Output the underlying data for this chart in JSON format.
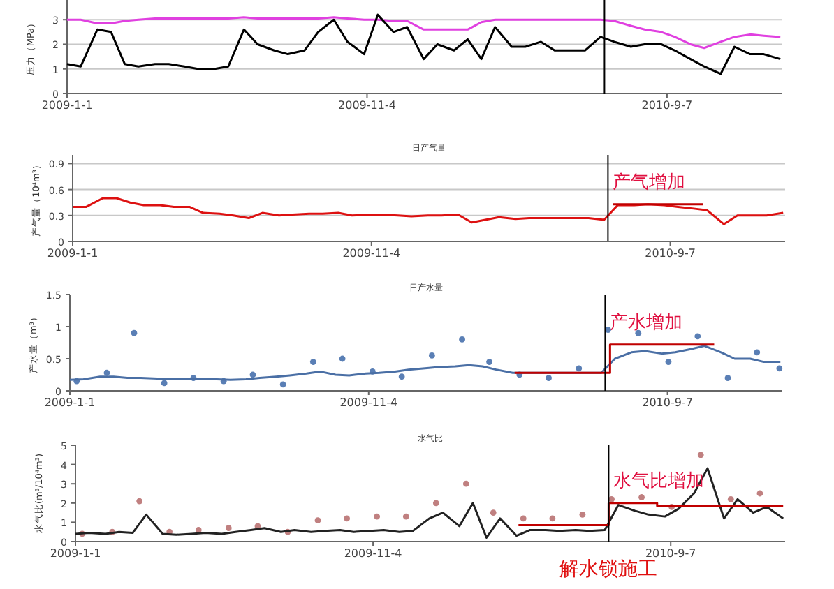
{
  "chart_data": [
    {
      "type": "line",
      "ylabel": "压力（MPa）",
      "grid": "y",
      "xlim": [
        "2009-01-01",
        "2011-01-03"
      ],
      "ylim": [
        0,
        3.8
      ],
      "yticks": [
        0,
        1,
        2,
        3
      ],
      "xticks": [
        {
          "value": "2009-01-01",
          "label": "2009-1-1"
        },
        {
          "value": "2009-11-04",
          "label": "2009-11-4"
        },
        {
          "value": "2010-09-07",
          "label": "2010-9-7"
        }
      ],
      "x": [
        "2009-01-01",
        "2009-01-15",
        "2009-02-01",
        "2009-02-15",
        "2009-03-01",
        "2009-03-15",
        "2009-04-01",
        "2009-04-15",
        "2009-05-01",
        "2009-05-15",
        "2009-06-01",
        "2009-06-15",
        "2009-07-01",
        "2009-07-15",
        "2009-08-01",
        "2009-08-15",
        "2009-09-01",
        "2009-09-15",
        "2009-10-01",
        "2009-10-15",
        "2009-11-01",
        "2009-11-15",
        "2009-12-01",
        "2009-12-15",
        "2010-01-01",
        "2010-01-15",
        "2010-02-01",
        "2010-02-15",
        "2010-03-01",
        "2010-03-15",
        "2010-04-01",
        "2010-04-15",
        "2010-05-01",
        "2010-05-15",
        "2010-06-01",
        "2010-06-15",
        "2010-07-01",
        "2010-07-15",
        "2010-08-01",
        "2010-08-15",
        "2010-09-01",
        "2010-09-15",
        "2010-10-01",
        "2010-10-15",
        "2010-11-01",
        "2010-11-15",
        "2010-12-01",
        "2010-12-15",
        "2011-01-01"
      ],
      "series": [
        {
          "color": "#e040e0",
          "values": [
            3.0,
            3.0,
            2.85,
            2.85,
            2.95,
            3.0,
            3.05,
            3.05,
            3.05,
            3.05,
            3.05,
            3.05,
            3.1,
            3.05,
            3.05,
            3.05,
            3.05,
            3.05,
            3.1,
            3.05,
            3.0,
            3.0,
            2.95,
            2.95,
            2.6,
            2.6,
            2.6,
            2.6,
            2.9,
            3.0,
            3.0,
            3.0,
            3.0,
            3.0,
            3.0,
            3.0,
            3.0,
            2.95,
            2.75,
            2.6,
            2.5,
            2.3,
            2.0,
            1.85,
            2.1,
            2.3,
            2.4,
            2.35,
            2.3
          ]
        },
        {
          "color": "#000000",
          "values": [
            1.2,
            1.1,
            2.6,
            2.5,
            1.2,
            1.1,
            1.2,
            1.2,
            1.1,
            1.0,
            1.0,
            1.1,
            2.6,
            2.0,
            1.75,
            1.6,
            1.75,
            2.5,
            3.0,
            2.1,
            1.6,
            3.2,
            2.5,
            2.7,
            1.4,
            2.0,
            1.75,
            2.2,
            1.4,
            2.7,
            1.9,
            1.9,
            2.1,
            1.75,
            1.75,
            1.75,
            2.3,
            2.1,
            1.9,
            2.0,
            2.0,
            1.75,
            1.4,
            1.1,
            0.8,
            1.9,
            1.6,
            1.6,
            1.4
          ]
        }
      ],
      "ref_lines": [
        {
          "axis": "x",
          "value": "2010-07-05",
          "color": "#000000"
        }
      ]
    },
    {
      "type": "line",
      "title": "日产气量",
      "ylabel": "产气量（10⁴m³）",
      "grid": "y",
      "xlim": [
        "2009-01-01",
        "2011-01-03"
      ],
      "ylim": [
        0,
        1.0
      ],
      "yticks": [
        0,
        0.3,
        0.6,
        0.9
      ],
      "xticks": [
        {
          "value": "2009-01-01",
          "label": "2009-1-1"
        },
        {
          "value": "2009-11-04",
          "label": "2009-11-4"
        },
        {
          "value": "2010-09-07",
          "label": "2010-9-7"
        }
      ],
      "x": [
        "2009-01-01",
        "2009-01-15",
        "2009-02-01",
        "2009-02-15",
        "2009-03-01",
        "2009-03-15",
        "2009-04-01",
        "2009-04-15",
        "2009-05-01",
        "2009-05-15",
        "2009-06-01",
        "2009-06-15",
        "2009-07-01",
        "2009-07-15",
        "2009-08-01",
        "2009-08-15",
        "2009-09-01",
        "2009-09-15",
        "2009-10-01",
        "2009-10-15",
        "2009-11-01",
        "2009-11-15",
        "2009-12-01",
        "2009-12-15",
        "2010-01-01",
        "2010-01-15",
        "2010-02-01",
        "2010-02-15",
        "2010-03-01",
        "2010-03-15",
        "2010-04-01",
        "2010-04-15",
        "2010-05-01",
        "2010-05-15",
        "2010-06-01",
        "2010-06-15",
        "2010-07-01",
        "2010-07-15",
        "2010-08-01",
        "2010-08-15",
        "2010-09-01",
        "2010-09-15",
        "2010-10-01",
        "2010-10-15",
        "2010-11-01",
        "2010-11-15",
        "2010-12-01",
        "2010-12-15",
        "2011-01-01"
      ],
      "series": [
        {
          "color": "#dd1111",
          "values": [
            0.4,
            0.4,
            0.5,
            0.5,
            0.45,
            0.42,
            0.42,
            0.4,
            0.4,
            0.33,
            0.32,
            0.3,
            0.27,
            0.33,
            0.3,
            0.31,
            0.32,
            0.32,
            0.33,
            0.3,
            0.31,
            0.31,
            0.3,
            0.29,
            0.3,
            0.3,
            0.31,
            0.22,
            0.25,
            0.28,
            0.26,
            0.27,
            0.27,
            0.27,
            0.27,
            0.27,
            0.25,
            0.42,
            0.42,
            0.43,
            0.42,
            0.4,
            0.38,
            0.36,
            0.2,
            0.3,
            0.3,
            0.3,
            0.33
          ]
        },
        {
          "color": "#c00000",
          "x": [
            "2010-07-10",
            "2010-10-11"
          ],
          "values": [
            0.43,
            0.43
          ]
        }
      ],
      "ref_lines": [
        {
          "axis": "x",
          "value": "2010-07-05",
          "color": "#000000"
        }
      ],
      "annotations": [
        {
          "text": "产气增加",
          "x": "2010-07-10",
          "y": 0.43
        }
      ]
    },
    {
      "type": "line",
      "title": "日产水量",
      "ylabel": "产水量（m³）",
      "xlim": [
        "2009-01-01",
        "2011-01-03"
      ],
      "ylim": [
        0,
        1.5
      ],
      "yticks": [
        0,
        0.5,
        1,
        1.5
      ],
      "xticks": [
        {
          "value": "2009-01-01",
          "label": "2009-1-1"
        },
        {
          "value": "2009-11-04",
          "label": "2009-11-4"
        },
        {
          "value": "2010-09-07",
          "label": "2010-9-7"
        }
      ],
      "x": [
        "2009-01-01",
        "2009-01-15",
        "2009-02-01",
        "2009-02-15",
        "2009-03-01",
        "2009-03-15",
        "2009-04-01",
        "2009-04-15",
        "2009-05-01",
        "2009-05-15",
        "2009-06-01",
        "2009-06-15",
        "2009-07-01",
        "2009-07-15",
        "2009-08-01",
        "2009-08-15",
        "2009-09-01",
        "2009-09-15",
        "2009-10-01",
        "2009-10-15",
        "2009-11-01",
        "2009-11-15",
        "2009-12-01",
        "2009-12-15",
        "2010-01-01",
        "2010-01-15",
        "2010-02-01",
        "2010-02-15",
        "2010-03-01",
        "2010-03-15",
        "2010-04-01",
        "2010-04-15",
        "2010-05-01",
        "2010-05-15",
        "2010-06-01",
        "2010-06-15",
        "2010-07-01",
        "2010-07-15",
        "2010-08-01",
        "2010-08-15",
        "2010-09-01",
        "2010-09-15",
        "2010-10-01",
        "2010-10-15",
        "2010-11-01",
        "2010-11-15",
        "2010-12-01",
        "2010-12-15",
        "2011-01-01"
      ],
      "series": [
        {
          "type": "scatter",
          "color": "#5a7fb5",
          "x": [
            "2009-01-08",
            "2009-02-08",
            "2009-03-08",
            "2009-04-08",
            "2009-05-08",
            "2009-06-08",
            "2009-07-08",
            "2009-08-08",
            "2009-09-08",
            "2009-10-08",
            "2009-11-08",
            "2009-12-08",
            "2010-01-08",
            "2010-02-08",
            "2010-03-08",
            "2010-04-08",
            "2010-05-08",
            "2010-06-08",
            "2010-07-08",
            "2010-08-08",
            "2010-09-08",
            "2010-10-08",
            "2010-11-08",
            "2010-12-08",
            "2010-12-31"
          ],
          "values": [
            0.15,
            0.28,
            0.9,
            0.12,
            0.2,
            0.15,
            0.25,
            0.1,
            0.45,
            0.5,
            0.3,
            0.22,
            0.55,
            0.8,
            0.45,
            0.25,
            0.2,
            0.35,
            0.95,
            0.9,
            0.45,
            0.85,
            0.2,
            0.6,
            0.35
          ]
        },
        {
          "color": "#4a6fa5",
          "values": [
            0.17,
            0.18,
            0.22,
            0.22,
            0.2,
            0.2,
            0.19,
            0.18,
            0.18,
            0.18,
            0.18,
            0.17,
            0.18,
            0.2,
            0.22,
            0.24,
            0.27,
            0.3,
            0.25,
            0.24,
            0.27,
            0.28,
            0.3,
            0.33,
            0.35,
            0.37,
            0.38,
            0.4,
            0.38,
            0.33,
            0.28,
            0.28,
            0.28,
            0.28,
            0.28,
            0.28,
            0.28,
            0.5,
            0.6,
            0.62,
            0.58,
            0.6,
            0.65,
            0.7,
            0.6,
            0.5,
            0.5,
            0.45,
            0.45
          ]
        },
        {
          "color": "#c00000",
          "x": [
            "2010-04-03",
            "2010-07-10",
            "2010-07-10",
            "2010-10-25"
          ],
          "values": [
            0.28,
            0.28,
            0.72,
            0.72
          ]
        }
      ],
      "ref_lines": [
        {
          "axis": "x",
          "value": "2010-07-05",
          "color": "#000000"
        }
      ],
      "annotations": [
        {
          "text": "产水增加",
          "x": "2010-07-10",
          "y": 0.72
        }
      ]
    },
    {
      "type": "line",
      "title": "水气比",
      "ylabel": "水气比(m³/10⁴m³)",
      "xlim": [
        "2009-01-01",
        "2011-01-03"
      ],
      "ylim": [
        0,
        5
      ],
      "yticks": [
        0,
        1,
        2,
        3,
        4,
        5
      ],
      "xticks": [
        {
          "value": "2009-01-01",
          "label": "2009-1-1"
        },
        {
          "value": "2009-11-04",
          "label": "2009-11-4"
        },
        {
          "value": "2010-09-07",
          "label": "2010-9-7"
        }
      ],
      "x": [
        "2009-01-01",
        "2009-01-15",
        "2009-02-01",
        "2009-02-15",
        "2009-03-01",
        "2009-03-15",
        "2009-04-01",
        "2009-04-15",
        "2009-05-01",
        "2009-05-15",
        "2009-06-01",
        "2009-06-15",
        "2009-07-01",
        "2009-07-15",
        "2009-08-01",
        "2009-08-15",
        "2009-09-01",
        "2009-09-15",
        "2009-10-01",
        "2009-10-15",
        "2009-11-01",
        "2009-11-15",
        "2009-12-01",
        "2009-12-15",
        "2010-01-01",
        "2010-01-15",
        "2010-02-01",
        "2010-02-15",
        "2010-03-01",
        "2010-03-15",
        "2010-04-01",
        "2010-04-15",
        "2010-05-01",
        "2010-05-15",
        "2010-06-01",
        "2010-06-15",
        "2010-07-01",
        "2010-07-15",
        "2010-08-01",
        "2010-08-15",
        "2010-09-01",
        "2010-09-15",
        "2010-10-01",
        "2010-10-15",
        "2010-11-01",
        "2010-11-15",
        "2010-12-01",
        "2010-12-15",
        "2011-01-01"
      ],
      "series": [
        {
          "type": "scatter",
          "color": "#c08080",
          "x": [
            "2009-01-08",
            "2009-02-08",
            "2009-03-08",
            "2009-04-08",
            "2009-05-08",
            "2009-06-08",
            "2009-07-08",
            "2009-08-08",
            "2009-09-08",
            "2009-10-08",
            "2009-11-08",
            "2009-12-08",
            "2010-01-08",
            "2010-02-08",
            "2010-03-08",
            "2010-04-08",
            "2010-05-08",
            "2010-06-08",
            "2010-07-08",
            "2010-08-08",
            "2010-09-08",
            "2010-10-08",
            "2010-11-08",
            "2010-12-08"
          ],
          "values": [
            0.4,
            0.5,
            2.1,
            0.5,
            0.6,
            0.7,
            0.8,
            0.5,
            1.1,
            1.2,
            1.3,
            1.3,
            2.0,
            3.0,
            1.5,
            1.2,
            1.2,
            1.4,
            2.2,
            2.3,
            1.8,
            4.5,
            2.2,
            2.5
          ]
        },
        {
          "color": "#222222",
          "values": [
            0.4,
            0.45,
            0.4,
            0.5,
            0.45,
            1.4,
            0.4,
            0.35,
            0.4,
            0.45,
            0.4,
            0.5,
            0.6,
            0.7,
            0.5,
            0.6,
            0.5,
            0.55,
            0.6,
            0.5,
            0.55,
            0.6,
            0.5,
            0.55,
            1.2,
            1.5,
            0.8,
            2.0,
            0.2,
            1.2,
            0.3,
            0.6,
            0.6,
            0.55,
            0.6,
            0.55,
            0.6,
            1.9,
            1.6,
            1.4,
            1.3,
            1.7,
            2.5,
            3.8,
            1.2,
            2.2,
            1.5,
            1.8,
            1.2
          ]
        },
        {
          "color": "#c00000",
          "x": [
            "2010-04-03",
            "2010-07-05",
            "2010-07-05",
            "2010-08-24",
            "2010-08-24",
            "2011-01-01"
          ],
          "values": [
            0.85,
            0.85,
            2.0,
            2.0,
            1.85,
            1.85
          ]
        }
      ],
      "ref_lines": [
        {
          "axis": "x",
          "value": "2010-07-05",
          "color": "#000000",
          "label": "解水锁施工"
        }
      ],
      "annotations": [
        {
          "text": "水气比增加",
          "x": "2010-07-10",
          "y": 2.0
        }
      ]
    }
  ]
}
